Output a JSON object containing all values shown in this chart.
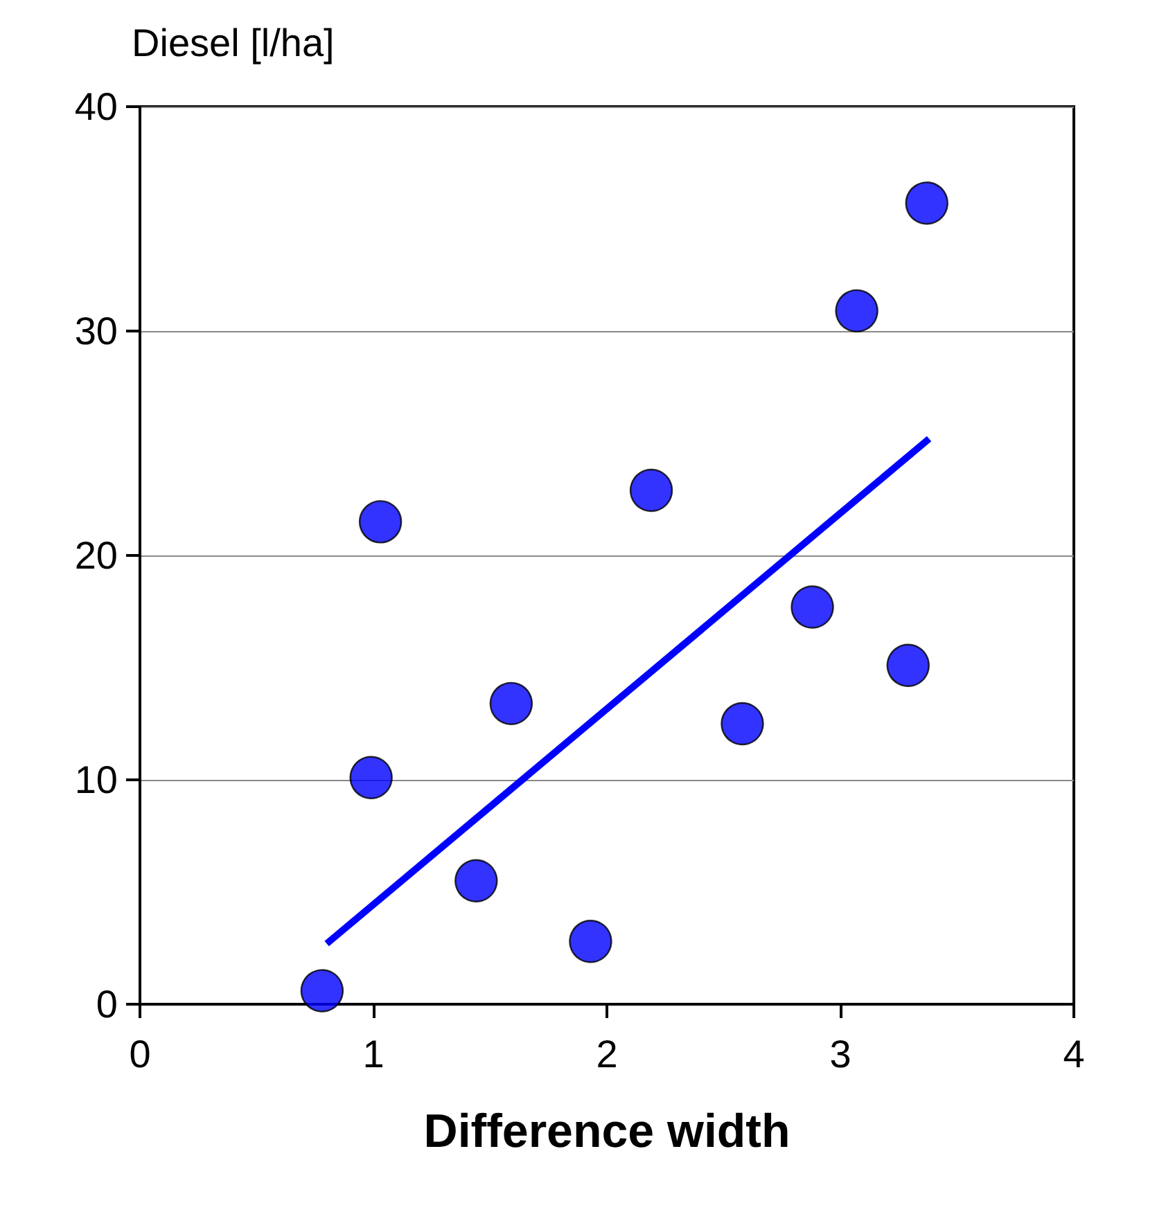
{
  "chart_data": {
    "type": "scatter",
    "xlabel": "Difference width",
    "ylabel": "Diesel [l/ha]",
    "xlim": [
      0,
      4
    ],
    "xticks": [
      0,
      1,
      2,
      3,
      4
    ],
    "ylim": [
      0,
      40
    ],
    "yticks": [
      0,
      10,
      20,
      30,
      40
    ],
    "grid": "y",
    "marker": "circle",
    "series": [
      {
        "color": "#0000ff",
        "x": [
          0.78,
          0.99,
          1.03,
          1.44,
          1.59,
          1.93,
          2.19,
          2.58,
          2.88,
          3.07,
          3.29,
          3.37
        ],
        "values": [
          0.6,
          10.1,
          21.5,
          5.5,
          13.4,
          2.8,
          22.9,
          12.5,
          17.7,
          30.9,
          15.1,
          35.7
        ]
      },
      {
        "type": "line",
        "color": "#0000ff",
        "x": [
          0.8,
          3.38
        ],
        "values": [
          2.7,
          25.2
        ],
        "marker": "none"
      }
    ]
  }
}
